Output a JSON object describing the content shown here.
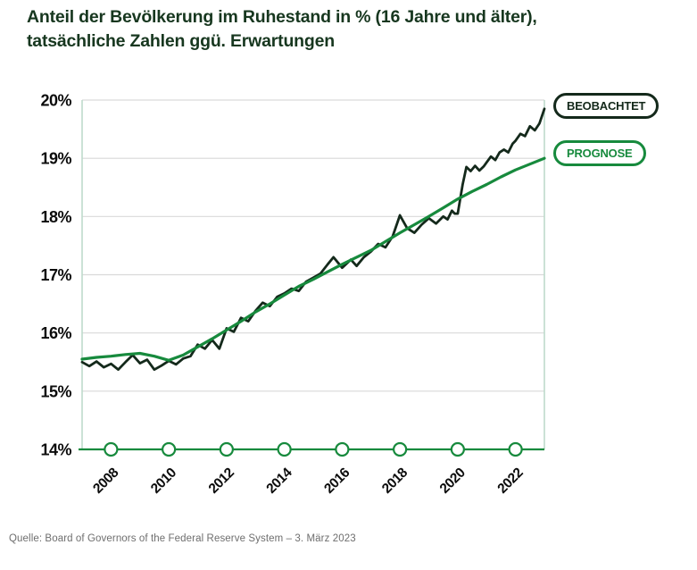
{
  "title": {
    "line1": "Anteil der Bevölkerung im Ruhestand in % (16 Jahre und älter),",
    "line2": "tatsächliche Zahlen ggü. Erwartungen"
  },
  "legend": {
    "observed_label": "BEOBACHTET",
    "forecast_label": "PROGNOSE"
  },
  "source_line": "Quelle: Board of Governors of the Federal Reserve System – 3. März 2023",
  "colors": {
    "title_green": "#17371f",
    "observed_dark": "#14291b",
    "forecast_green": "#178a3d",
    "gridline_gray": "#d9d9d9",
    "plot_border_teal": "#bedacb",
    "axis_green": "#178a3d",
    "tick_label_black": "#0c0c0c",
    "source_gray": "#6e6e6e"
  },
  "chart_data": {
    "type": "line",
    "title": "Anteil der Bevölkerung im Ruhestand in % (16 Jahre und älter), tatsächliche Zahlen ggü. Erwartungen",
    "xlabel": "",
    "ylabel": "",
    "xlim": [
      2007,
      2023
    ],
    "ylim": [
      14,
      20
    ],
    "grid": true,
    "legend_position": "top-right",
    "y_ticks": [
      20,
      19,
      18,
      17,
      16,
      15,
      14
    ],
    "y_tick_labels": [
      "20%",
      "19%",
      "18%",
      "17%",
      "16%",
      "15%",
      "14%"
    ],
    "x_ticks": [
      2008,
      2010,
      2012,
      2014,
      2016,
      2018,
      2020,
      2022
    ],
    "x_tick_labels": [
      "2008",
      "2010",
      "2012",
      "2014",
      "2016",
      "2018",
      "2020",
      "2022"
    ],
    "series": [
      {
        "name": "BEOBACHTET",
        "color": "#14291b",
        "width": 2.8,
        "x": [
          2007.0,
          2007.25,
          2007.5,
          2007.75,
          2008.0,
          2008.25,
          2008.5,
          2008.75,
          2009.0,
          2009.25,
          2009.5,
          2009.75,
          2010.0,
          2010.25,
          2010.5,
          2010.75,
          2011.0,
          2011.25,
          2011.5,
          2011.75,
          2012.0,
          2012.25,
          2012.5,
          2012.75,
          2013.0,
          2013.25,
          2013.5,
          2013.75,
          2014.0,
          2014.25,
          2014.5,
          2014.75,
          2015.0,
          2015.25,
          2015.5,
          2015.7,
          2016.0,
          2016.3,
          2016.5,
          2016.75,
          2017.0,
          2017.25,
          2017.5,
          2017.75,
          2018.0,
          2018.25,
          2018.5,
          2018.75,
          2019.0,
          2019.25,
          2019.5,
          2019.65,
          2019.8,
          2019.9,
          2020.0,
          2020.17,
          2020.3,
          2020.45,
          2020.6,
          2020.75,
          2020.9,
          2021.0,
          2021.15,
          2021.3,
          2021.45,
          2021.6,
          2021.75,
          2021.9,
          2022.0,
          2022.17,
          2022.33,
          2022.5,
          2022.67,
          2022.83,
          2023.0
        ],
        "y": [
          15.5,
          15.43,
          15.51,
          15.41,
          15.47,
          15.37,
          15.5,
          15.62,
          15.48,
          15.54,
          15.37,
          15.44,
          15.52,
          15.46,
          15.56,
          15.6,
          15.8,
          15.73,
          15.88,
          15.73,
          16.08,
          16.02,
          16.26,
          16.2,
          16.38,
          16.52,
          16.46,
          16.62,
          16.68,
          16.76,
          16.72,
          16.88,
          16.95,
          17.02,
          17.18,
          17.3,
          17.12,
          17.26,
          17.15,
          17.3,
          17.4,
          17.53,
          17.47,
          17.66,
          18.02,
          17.8,
          17.72,
          17.86,
          17.97,
          17.88,
          18.0,
          17.95,
          18.1,
          18.05,
          18.05,
          18.55,
          18.85,
          18.78,
          18.87,
          18.79,
          18.86,
          18.93,
          19.03,
          18.97,
          19.1,
          19.15,
          19.1,
          19.25,
          19.3,
          19.42,
          19.38,
          19.55,
          19.48,
          19.6,
          19.85
        ]
      },
      {
        "name": "PROGNOSE",
        "color": "#178a3d",
        "width": 3.2,
        "x": [
          2007.0,
          2007.5,
          2008.0,
          2008.5,
          2009.0,
          2009.5,
          2010.0,
          2010.5,
          2011.0,
          2011.5,
          2012.0,
          2012.5,
          2013.0,
          2013.5,
          2014.0,
          2014.5,
          2015.0,
          2015.5,
          2016.0,
          2016.5,
          2017.0,
          2017.5,
          2018.0,
          2018.5,
          2019.0,
          2019.5,
          2020.0,
          2020.5,
          2021.0,
          2021.5,
          2022.0,
          2022.5,
          2023.0
        ],
        "y": [
          15.55,
          15.58,
          15.6,
          15.63,
          15.65,
          15.6,
          15.53,
          15.62,
          15.76,
          15.9,
          16.05,
          16.2,
          16.36,
          16.5,
          16.65,
          16.8,
          16.92,
          17.05,
          17.18,
          17.3,
          17.42,
          17.57,
          17.72,
          17.86,
          18.0,
          18.15,
          18.3,
          18.43,
          18.55,
          18.68,
          18.8,
          18.9,
          19.0
        ]
      }
    ]
  }
}
